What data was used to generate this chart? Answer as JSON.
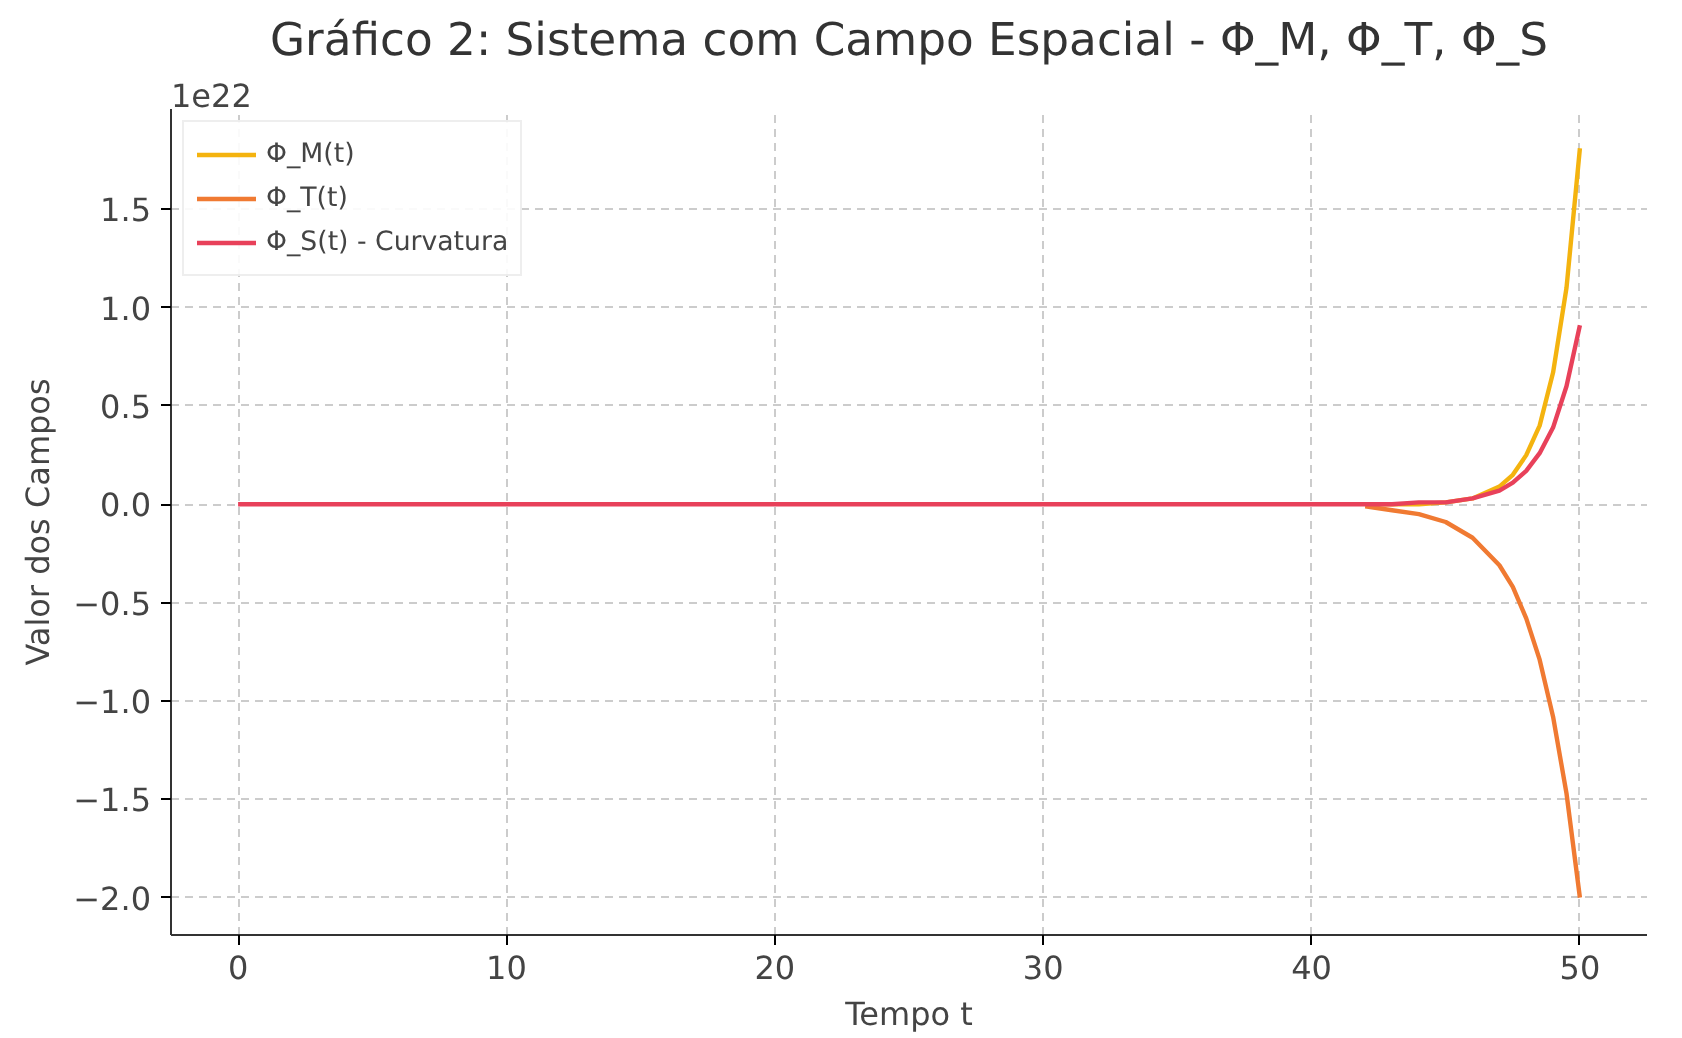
{
  "chart_data": {
    "type": "line",
    "title": "Gráfico 2: Sistema com Campo Espacial - Φ_M, Φ_T, Φ_S",
    "xlabel": "Tempo t",
    "ylabel": "Valor dos Campos",
    "annotations": [
      "1e22"
    ],
    "x": [
      0,
      10,
      20,
      30,
      40,
      42,
      43,
      44,
      45,
      46,
      47,
      47.5,
      48,
      48.5,
      49,
      49.5,
      50
    ],
    "series": [
      {
        "name": "Φ_M(t)",
        "color": "#f4b30f",
        "x": [
          42,
          43,
          44,
          45,
          46,
          47,
          47.5,
          48,
          48.5,
          49,
          49.5,
          50
        ],
        "values": [
          0,
          0,
          0,
          0.01,
          0.03,
          0.09,
          0.15,
          0.25,
          0.4,
          0.67,
          1.1,
          1.81
        ]
      },
      {
        "name": "Φ_T(t)",
        "color": "#f07a32",
        "x": [
          42,
          43,
          44,
          45,
          46,
          47,
          47.5,
          48,
          48.5,
          49,
          49.5,
          50
        ],
        "values": [
          -0.01,
          -0.03,
          -0.05,
          -0.09,
          -0.17,
          -0.31,
          -0.42,
          -0.58,
          -0.79,
          -1.08,
          -1.47,
          -2.0
        ]
      },
      {
        "name": "Φ_S(t) - Curvatura",
        "color": "#e8415a",
        "values": [
          0,
          0,
          0,
          0,
          0,
          0,
          0,
          0.01,
          0.01,
          0.03,
          0.07,
          0.11,
          0.17,
          0.26,
          0.39,
          0.6,
          0.91
        ]
      }
    ],
    "xlim": [
      -2.5,
      52.5
    ],
    "xticks": [
      0,
      10,
      20,
      30,
      40,
      50
    ],
    "ylim": [
      -2.19,
      2.01
    ],
    "yticks": [
      {
        "value": -2.0,
        "label": "−2.0"
      },
      {
        "value": -1.5,
        "label": "−1.5"
      },
      {
        "value": -1.0,
        "label": "−1.0"
      },
      {
        "value": -0.5,
        "label": "−0.5"
      },
      {
        "value": 0,
        "label": "0.0"
      },
      {
        "value": 0.5,
        "label": "0.5"
      },
      {
        "value": 1.0,
        "label": "1.0"
      },
      {
        "value": 1.5,
        "label": "1.5"
      }
    ],
    "grid": true,
    "legend": "top left",
    "marker": "none",
    "line_style": "solid"
  }
}
